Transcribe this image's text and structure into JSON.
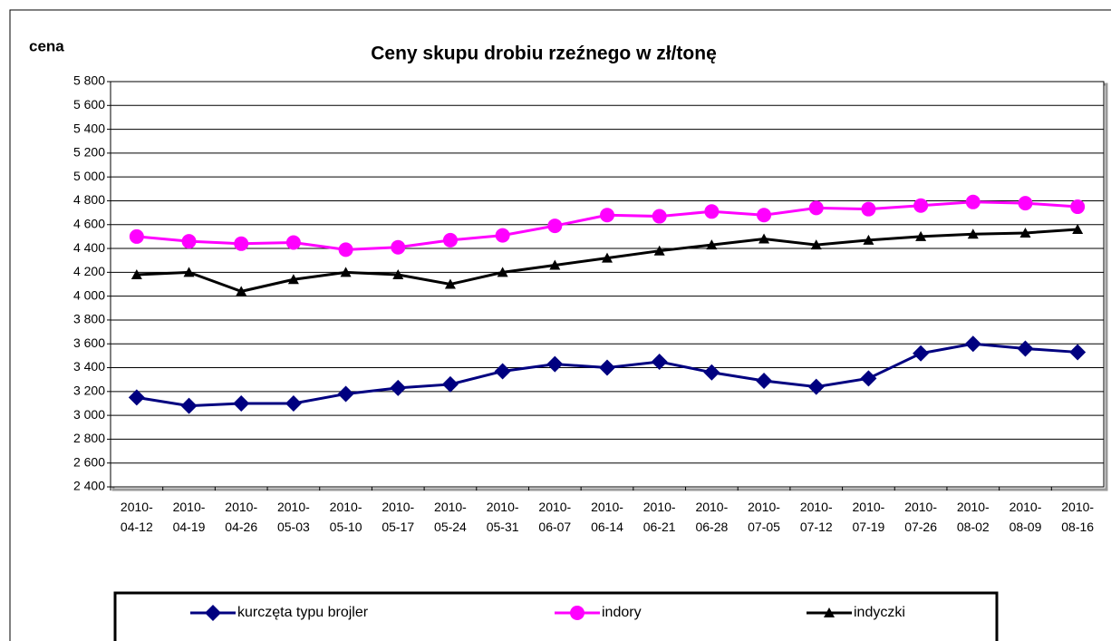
{
  "chart_data": {
    "type": "line",
    "title": "Ceny skupu drobiu rzeźnego w zł/tonę",
    "y_label": "cena",
    "categories": [
      "2010-04-12",
      "2010-04-19",
      "2010-04-26",
      "2010-05-03",
      "2010-05-10",
      "2010-05-17",
      "2010-05-24",
      "2010-05-31",
      "2010-06-07",
      "2010-06-14",
      "2010-06-21",
      "2010-06-28",
      "2010-07-05",
      "2010-07-12",
      "2010-07-19",
      "2010-07-26",
      "2010-08-02",
      "2010-08-09",
      "2010-08-16"
    ],
    "series": [
      {
        "name": "kurczęta typu brojler",
        "color": "#000080",
        "marker": "diamond",
        "values": [
          3150,
          3080,
          3100,
          3100,
          3180,
          3230,
          3260,
          3370,
          3430,
          3400,
          3450,
          3360,
          3290,
          3240,
          3310,
          3520,
          3600,
          3560,
          3530
        ]
      },
      {
        "name": "indory",
        "color": "#ff00ff",
        "marker": "circle",
        "values": [
          4500,
          4460,
          4440,
          4450,
          4390,
          4410,
          4470,
          4510,
          4590,
          4680,
          4670,
          4710,
          4680,
          4740,
          4730,
          4760,
          4790,
          4780,
          4750
        ]
      },
      {
        "name": "indyczki",
        "color": "#000000",
        "marker": "triangle",
        "values": [
          4180,
          4200,
          4040,
          4140,
          4200,
          4180,
          4100,
          4200,
          4260,
          4320,
          4380,
          4430,
          4480,
          4430,
          4470,
          4500,
          4520,
          4530,
          4560
        ]
      }
    ],
    "ylim": [
      2400,
      5800
    ],
    "yticks": [
      {
        "value": 2400,
        "label": "2 400"
      },
      {
        "value": 2600,
        "label": "2 600"
      },
      {
        "value": 2800,
        "label": "2 800"
      },
      {
        "value": 3000,
        "label": "3 000"
      },
      {
        "value": 3200,
        "label": "3 200"
      },
      {
        "value": 3400,
        "label": "3 400"
      },
      {
        "value": 3600,
        "label": "3 600"
      },
      {
        "value": 3800,
        "label": "3 800"
      },
      {
        "value": 4000,
        "label": "4 000"
      },
      {
        "value": 4200,
        "label": "4 200"
      },
      {
        "value": 4400,
        "label": "4 400"
      },
      {
        "value": 4600,
        "label": "4 600"
      },
      {
        "value": 4800,
        "label": "4 800"
      },
      {
        "value": 5000,
        "label": "5 000"
      },
      {
        "value": 5200,
        "label": "5 200"
      },
      {
        "value": 5400,
        "label": "5 400"
      },
      {
        "value": 5600,
        "label": "5 600"
      },
      {
        "value": 5800,
        "label": "5 800"
      }
    ],
    "grid": true,
    "legend": "bottom"
  }
}
